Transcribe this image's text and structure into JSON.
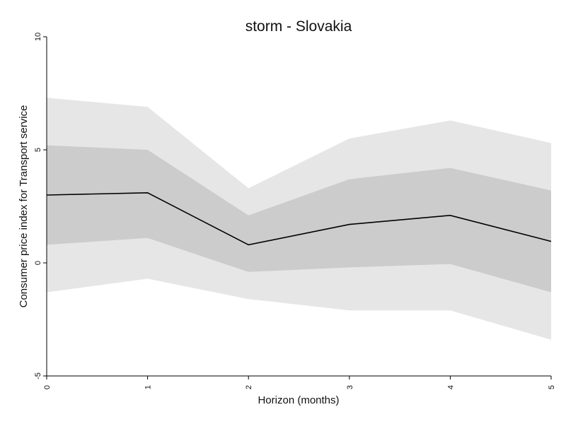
{
  "chart_data": {
    "type": "area",
    "title": "storm - Slovakia",
    "xlabel": "Horizon (months)",
    "ylabel": "Consumer price index for Transport service",
    "x": [
      0,
      1,
      2,
      3,
      4,
      5
    ],
    "xlim": [
      0,
      5
    ],
    "ylim": [
      -5,
      10
    ],
    "xticks": [
      0,
      1,
      2,
      3,
      4,
      5
    ],
    "yticks": [
      -5,
      0,
      5,
      10
    ],
    "grid": false,
    "bands": [
      {
        "upper": [
          7.3,
          6.9,
          3.3,
          5.5,
          6.3,
          5.3
        ],
        "lower": [
          -1.3,
          -0.7,
          -1.6,
          -2.1,
          -2.1,
          -3.4
        ],
        "color": "#e6e6e6"
      },
      {
        "upper": [
          5.2,
          5.0,
          2.1,
          3.7,
          4.2,
          3.2
        ],
        "lower": [
          0.8,
          1.1,
          -0.4,
          -0.2,
          -0.05,
          -1.3
        ],
        "color": "#cccccc"
      }
    ],
    "series": [
      {
        "values": [
          3.0,
          3.1,
          0.8,
          1.7,
          2.1,
          0.95
        ],
        "color": "#000000"
      }
    ]
  }
}
